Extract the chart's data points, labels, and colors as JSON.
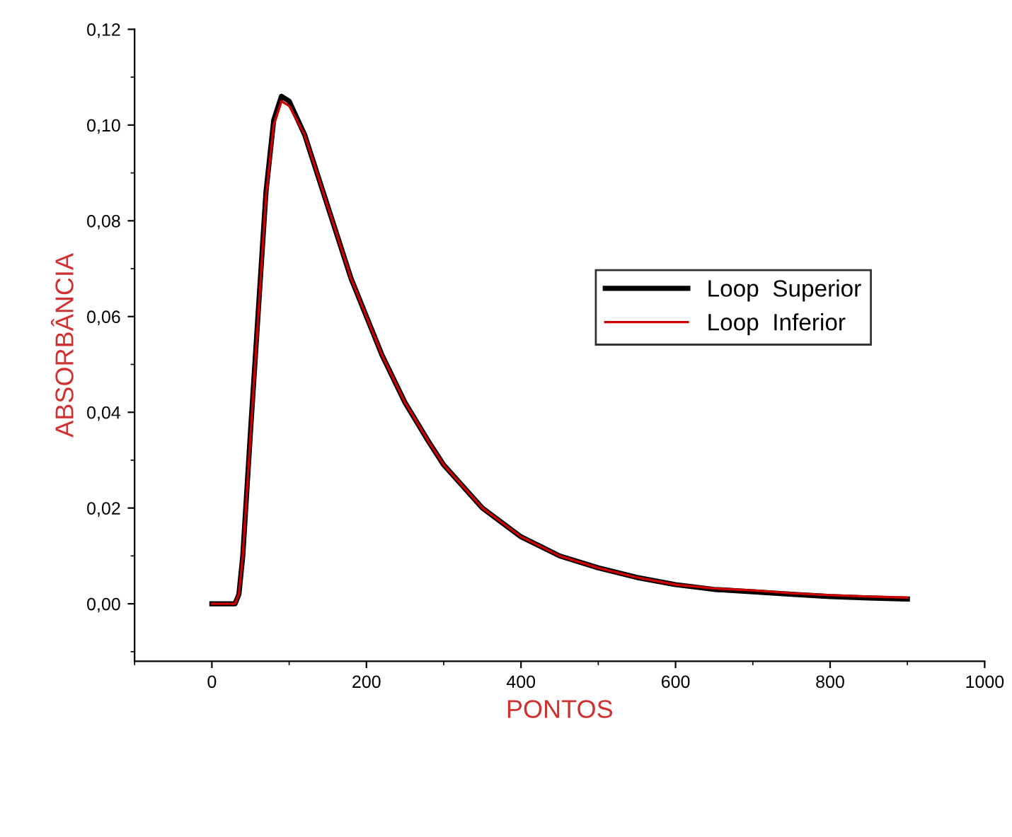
{
  "chart_data": {
    "type": "line",
    "xlabel": "PONTOS",
    "ylabel": "ABSORBÂNCIA",
    "legend": "right",
    "x": [
      0,
      20,
      30,
      35,
      40,
      50,
      60,
      70,
      80,
      90,
      100,
      120,
      140,
      160,
      180,
      200,
      220,
      250,
      280,
      300,
      350,
      400,
      450,
      500,
      550,
      600,
      650,
      700,
      750,
      800,
      850,
      900
    ],
    "series": [
      {
        "name": "Loop  Superior",
        "color": "#000000",
        "values": [
          0,
          0,
          0,
          0.002,
          0.01,
          0.036,
          0.061,
          0.086,
          0.101,
          0.106,
          0.105,
          0.098,
          0.088,
          0.078,
          0.068,
          0.06,
          0.052,
          0.042,
          0.034,
          0.029,
          0.02,
          0.014,
          0.01,
          0.0075,
          0.0055,
          0.004,
          0.003,
          0.0025,
          0.002,
          0.0015,
          0.0012,
          0.001
        ]
      },
      {
        "name": "Loop  Inferior",
        "color": "#cc0000",
        "values": [
          0,
          0,
          0,
          0.002,
          0.01,
          0.035,
          0.06,
          0.085,
          0.1,
          0.105,
          0.104,
          0.098,
          0.088,
          0.078,
          0.068,
          0.06,
          0.052,
          0.042,
          0.034,
          0.029,
          0.02,
          0.014,
          0.01,
          0.0075,
          0.0055,
          0.004,
          0.0032,
          0.0028,
          0.0022,
          0.0018,
          0.0015,
          0.0013
        ]
      }
    ],
    "xlim": [
      -100,
      1000
    ],
    "xticks": [
      0,
      200,
      400,
      600,
      800,
      1000
    ],
    "ylim": [
      -0.012,
      0.12
    ],
    "yticks": [
      {
        "value": 0,
        "label": "0,00"
      },
      {
        "value": 0.02,
        "label": "0,02"
      },
      {
        "value": 0.04,
        "label": "0,04"
      },
      {
        "value": 0.06,
        "label": "0,06"
      },
      {
        "value": 0.08,
        "label": "0,08"
      },
      {
        "value": 0.1,
        "label": "0,10"
      },
      {
        "value": 0.12,
        "label": "0,12"
      }
    ],
    "grid": false,
    "line_style": "solid",
    "marker": "none"
  }
}
